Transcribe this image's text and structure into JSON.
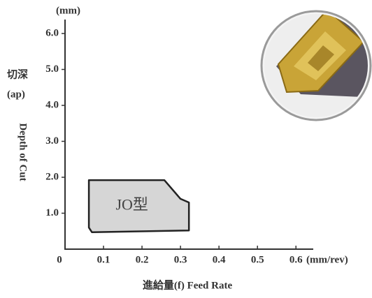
{
  "chart_data": {
    "type": "region",
    "y_unit": "(mm)",
    "x_unit": "(mm/rev)",
    "y_label_cn": "切深",
    "y_label_sym": "(ap)",
    "y_label_en": "Depth of Cut",
    "x_label": "進給量(f) Feed Rate",
    "xlim": [
      0,
      0.645
    ],
    "ylim": [
      0,
      6.4
    ],
    "xticks": [
      0,
      0.1,
      0.2,
      0.3,
      0.4,
      0.5,
      0.6
    ],
    "yticks": [
      {
        "value": 1,
        "label": "1.0"
      },
      {
        "value": 2,
        "label": "2.0"
      },
      {
        "value": 3,
        "label": "3.0"
      },
      {
        "value": 4,
        "label": "4.0"
      },
      {
        "value": 5,
        "label": "5.0"
      },
      {
        "value": 6,
        "label": "6.0"
      }
    ],
    "series": [
      {
        "name": "JO型",
        "color": "#d6d6d6",
        "x": [
          0.062,
          0.258,
          0.3,
          0.322,
          0.322,
          0.07,
          0.062
        ],
        "values": [
          1.92,
          1.92,
          1.4,
          1.3,
          0.52,
          0.47,
          0.6
        ]
      }
    ]
  }
}
